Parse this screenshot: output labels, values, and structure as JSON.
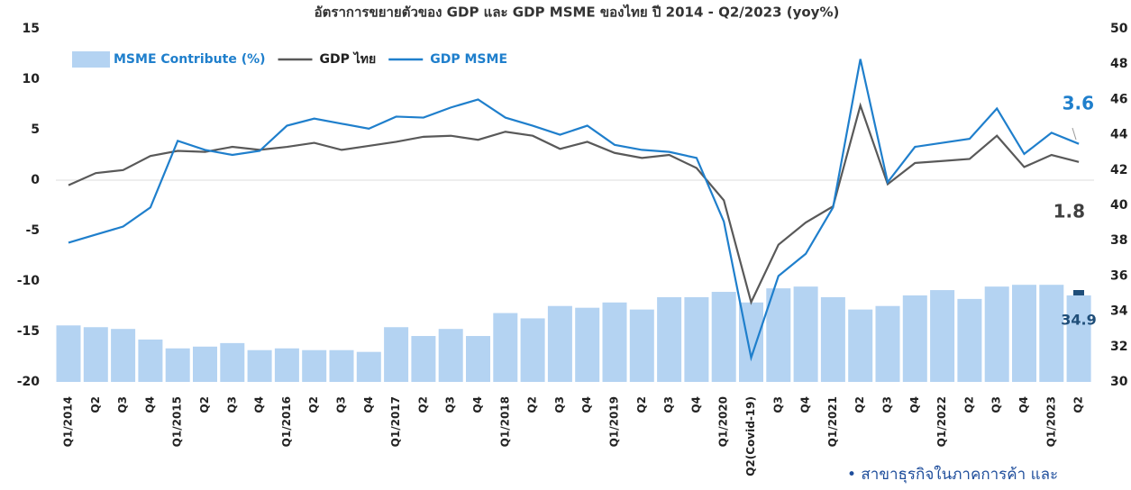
{
  "chart_data": {
    "type": "bar_line",
    "title": "อัตราการขยายตัวของ GDP และ GDP MSME ของไทย ปี 2014 - Q2/2023 (yoy%)",
    "categories": [
      "Q1/2014",
      "Q2",
      "Q3",
      "Q4",
      "Q1/2015",
      "Q2",
      "Q3",
      "Q4",
      "Q1/2016",
      "Q2",
      "Q3",
      "Q4",
      "Q1/2017",
      "Q2",
      "Q3",
      "Q4",
      "Q1/2018",
      "Q2",
      "Q3",
      "Q4",
      "Q1/2019",
      "Q2",
      "Q3",
      "Q4",
      "Q1/2020",
      "Q2(Covid-19)",
      "Q3",
      "Q4",
      "Q1/2021",
      "Q2",
      "Q3",
      "Q4",
      "Q1/2022",
      "Q2",
      "Q3",
      "Q4",
      "Q1/2023",
      "Q2"
    ],
    "series": [
      {
        "name": "MSME Contribute (%)",
        "kind": "bar",
        "axis": "y2",
        "color": "#b4d3f2",
        "values": [
          33.2,
          33.1,
          33.0,
          32.4,
          31.9,
          32.0,
          32.2,
          31.8,
          31.9,
          31.8,
          31.8,
          31.7,
          33.1,
          32.6,
          33.0,
          32.6,
          33.9,
          33.6,
          34.3,
          34.2,
          34.5,
          34.1,
          34.8,
          34.8,
          35.1,
          34.5,
          35.3,
          35.4,
          34.8,
          34.1,
          34.3,
          34.9,
          35.2,
          34.7,
          35.4,
          35.5,
          35.5,
          34.9
        ]
      },
      {
        "name": "GDP ไทย",
        "kind": "line",
        "color": "#595959",
        "values": [
          -0.5,
          0.7,
          1.0,
          2.4,
          2.9,
          2.8,
          3.3,
          3.0,
          3.3,
          3.7,
          3.0,
          3.4,
          3.8,
          4.3,
          4.4,
          4.0,
          4.8,
          4.4,
          3.1,
          3.8,
          2.7,
          2.2,
          2.5,
          1.2,
          -2.0,
          -12.1,
          -6.4,
          -4.2,
          -2.6,
          7.4,
          -0.4,
          1.7,
          1.9,
          2.1,
          4.4,
          1.3,
          2.5,
          1.8
        ]
      },
      {
        "name": "GDP MSME",
        "kind": "line",
        "color": "#1f7fcc",
        "values": [
          -6.2,
          -5.4,
          -4.6,
          -2.7,
          3.9,
          3.0,
          2.5,
          2.9,
          5.4,
          6.1,
          5.6,
          5.1,
          6.3,
          6.2,
          7.2,
          8.0,
          6.2,
          5.4,
          4.5,
          5.4,
          3.5,
          3.0,
          2.8,
          2.2,
          -4.1,
          -17.6,
          -9.5,
          -7.3,
          -2.7,
          12.0,
          -0.2,
          3.3,
          3.7,
          4.1,
          7.1,
          2.6,
          4.7,
          3.6
        ]
      }
    ],
    "ylim": [
      -20,
      15
    ],
    "yticks": [
      -20,
      -15,
      -10,
      -5,
      0,
      5,
      10,
      15
    ],
    "y2lim": [
      30,
      50
    ],
    "y2ticks": [
      30,
      32,
      34,
      36,
      38,
      40,
      42,
      44,
      46,
      48,
      50
    ],
    "footer": "• สาขาธุรกิจในภาคการค้า และ"
  }
}
